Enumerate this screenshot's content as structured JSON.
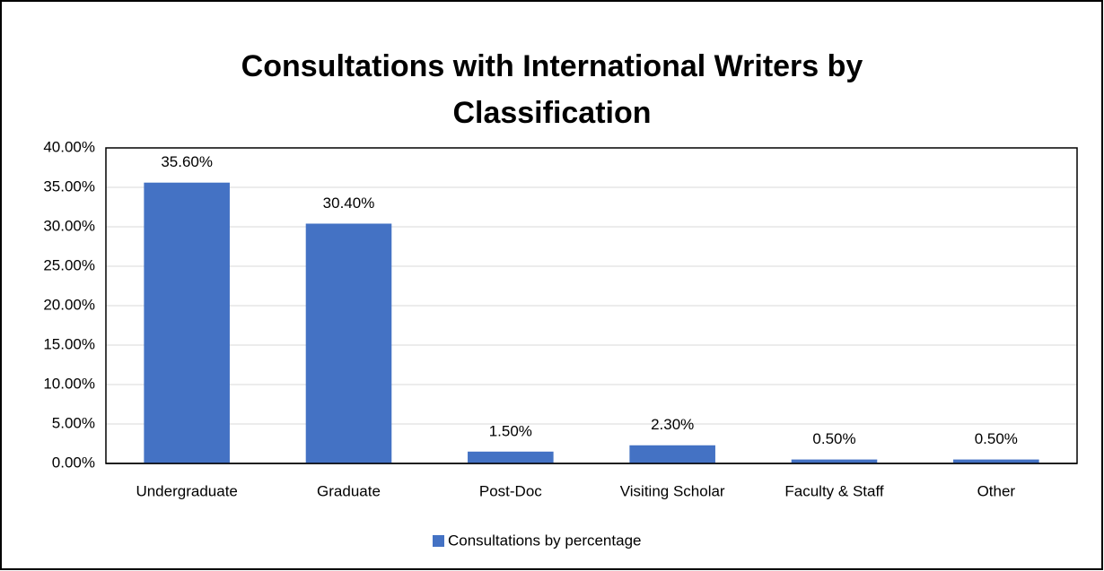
{
  "chart_data": {
    "type": "bar",
    "title": "Consultations with International Writers by Classification",
    "categories": [
      "Undergraduate",
      "Graduate",
      "Post-Doc",
      "Visiting Scholar",
      "Faculty & Staff",
      "Other"
    ],
    "series": [
      {
        "name": "Consultations by percentage",
        "color": "#4472c4",
        "values": [
          35.6,
          30.4,
          1.5,
          2.3,
          0.5,
          0.5
        ],
        "value_labels": [
          "35.60%",
          "30.40%",
          "1.50%",
          "2.30%",
          "0.50%",
          "0.50%"
        ]
      }
    ],
    "ylim": [
      0,
      40
    ],
    "yticks": [
      {
        "value": 0,
        "label": "0.00%"
      },
      {
        "value": 5,
        "label": "5.00%"
      },
      {
        "value": 10,
        "label": "10.00%"
      },
      {
        "value": 15,
        "label": "15.00%"
      },
      {
        "value": 20,
        "label": "20.00%"
      },
      {
        "value": 25,
        "label": "25.00%"
      },
      {
        "value": 30,
        "label": "30.00%"
      },
      {
        "value": 35,
        "label": "35.00%"
      },
      {
        "value": 40,
        "label": "40.00%"
      }
    ],
    "grid": true,
    "legend": "bottom"
  }
}
